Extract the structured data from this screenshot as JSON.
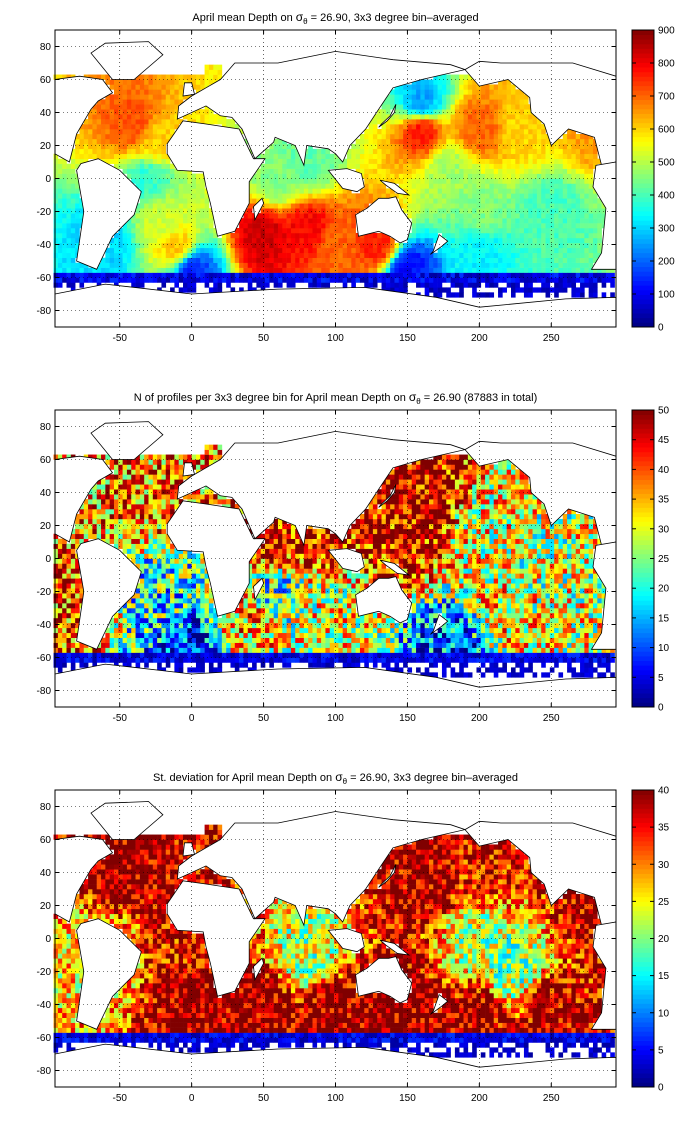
{
  "chart_data": [
    {
      "type": "heatmap",
      "title_parts": [
        "April mean Depth on ",
        "σ",
        "θ",
        " = 26.90, 3x3 degree bin–averaged"
      ],
      "xlabel": "",
      "ylabel": "",
      "xlim": [
        -95,
        295
      ],
      "ylim": [
        -90,
        90
      ],
      "xticks": [
        -50,
        0,
        50,
        100,
        150,
        200,
        250
      ],
      "yticks": [
        -80,
        -60,
        -40,
        -20,
        0,
        20,
        40,
        60,
        80
      ],
      "grid": true,
      "colorbar": {
        "min": 0,
        "max": 900,
        "ticks": [
          0,
          100,
          200,
          300,
          400,
          500,
          600,
          700,
          800,
          900
        ],
        "colormap": "jet"
      },
      "features": [
        {
          "lon": -40,
          "lat": 32,
          "value": 720
        },
        {
          "lon": -25,
          "lat": 22,
          "value": 600
        },
        {
          "lon": -30,
          "lat": 0,
          "value": 380
        },
        {
          "lon": -20,
          "lat": -25,
          "value": 520
        },
        {
          "lon": -10,
          "lat": -42,
          "value": 620
        },
        {
          "lon": -60,
          "lat": -40,
          "value": 300
        },
        {
          "lon": 50,
          "lat": -35,
          "value": 830
        },
        {
          "lon": 80,
          "lat": -30,
          "value": 790
        },
        {
          "lon": 100,
          "lat": -42,
          "value": 700
        },
        {
          "lon": 130,
          "lat": -40,
          "value": 760
        },
        {
          "lon": 60,
          "lat": 0,
          "value": 450
        },
        {
          "lon": 80,
          "lat": 10,
          "value": 420
        },
        {
          "lon": 160,
          "lat": 30,
          "value": 780
        },
        {
          "lon": 200,
          "lat": 30,
          "value": 700
        },
        {
          "lon": 230,
          "lat": 30,
          "value": 600
        },
        {
          "lon": 180,
          "lat": 5,
          "value": 480
        },
        {
          "lon": 200,
          "lat": -20,
          "value": 450
        },
        {
          "lon": 250,
          "lat": -20,
          "value": 400
        },
        {
          "lon": 200,
          "lat": -45,
          "value": 330
        },
        {
          "lon": 160,
          "lat": 45,
          "value": 250
        },
        {
          "lon": 0,
          "lat": -55,
          "value": 150
        },
        {
          "lon": 150,
          "lat": -55,
          "value": 120
        },
        {
          "lon": 280,
          "lat": 30,
          "value": 650
        }
      ]
    },
    {
      "type": "heatmap",
      "title_parts": [
        "N of profiles per 3x3 degree bin for April mean Depth on ",
        "σ",
        "θ",
        " = 26.90 (87883 in total)"
      ],
      "xlabel": "",
      "ylabel": "",
      "xlim": [
        -95,
        295
      ],
      "ylim": [
        -90,
        90
      ],
      "xticks": [
        -50,
        0,
        50,
        100,
        150,
        200,
        250
      ],
      "yticks": [
        -80,
        -60,
        -40,
        -20,
        0,
        20,
        40,
        60,
        80
      ],
      "grid": true,
      "colorbar": {
        "min": 0,
        "max": 50,
        "ticks": [
          0,
          5,
          10,
          15,
          20,
          25,
          30,
          35,
          40,
          45,
          50
        ],
        "colormap": "jet"
      },
      "features": [
        {
          "lon": 145,
          "lat": 40,
          "value": 50
        },
        {
          "lon": 165,
          "lat": 35,
          "value": 48
        },
        {
          "lon": 145,
          "lat": 20,
          "value": 45
        },
        {
          "lon": 60,
          "lat": 12,
          "value": 46
        },
        {
          "lon": 85,
          "lat": 15,
          "value": 44
        },
        {
          "lon": -30,
          "lat": 35,
          "value": 38
        },
        {
          "lon": -85,
          "lat": -30,
          "value": 40
        },
        {
          "lon": 200,
          "lat": 20,
          "value": 30
        },
        {
          "lon": 240,
          "lat": 0,
          "value": 28
        },
        {
          "lon": 220,
          "lat": -30,
          "value": 32
        },
        {
          "lon": 40,
          "lat": -40,
          "value": 35
        },
        {
          "lon": 100,
          "lat": -35,
          "value": 30
        },
        {
          "lon": -20,
          "lat": -20,
          "value": 20
        },
        {
          "lon": 60,
          "lat": -20,
          "value": 22
        },
        {
          "lon": 0,
          "lat": -55,
          "value": 8
        },
        {
          "lon": 180,
          "lat": -55,
          "value": 10
        }
      ]
    },
    {
      "type": "heatmap",
      "title_parts": [
        "St. deviation for April mean Depth on ",
        "σ",
        "θ",
        " = 26.90, 3x3 degree bin–averaged"
      ],
      "xlabel": "",
      "ylabel": "",
      "xlim": [
        -95,
        295
      ],
      "ylim": [
        -90,
        90
      ],
      "xticks": [
        -50,
        0,
        50,
        100,
        150,
        200,
        250
      ],
      "yticks": [
        -80,
        -60,
        -40,
        -20,
        0,
        20,
        40,
        60,
        80
      ],
      "grid": true,
      "colorbar": {
        "min": 0,
        "max": 40,
        "ticks": [
          0,
          5,
          10,
          15,
          20,
          25,
          30,
          35,
          40
        ],
        "colormap": "jet"
      },
      "features": [
        {
          "lon": -40,
          "lat": 40,
          "value": 40
        },
        {
          "lon": -20,
          "lat": 35,
          "value": 38
        },
        {
          "lon": 160,
          "lat": 35,
          "value": 39
        },
        {
          "lon": 200,
          "lat": 40,
          "value": 36
        },
        {
          "lon": 0,
          "lat": -40,
          "value": 40
        },
        {
          "lon": 50,
          "lat": -42,
          "value": 40
        },
        {
          "lon": 100,
          "lat": -45,
          "value": 40
        },
        {
          "lon": 150,
          "lat": -45,
          "value": 40
        },
        {
          "lon": 200,
          "lat": -45,
          "value": 39
        },
        {
          "lon": 250,
          "lat": -45,
          "value": 38
        },
        {
          "lon": -10,
          "lat": -5,
          "value": 36
        },
        {
          "lon": 200,
          "lat": 0,
          "value": 22
        },
        {
          "lon": 220,
          "lat": -20,
          "value": 20
        },
        {
          "lon": -60,
          "lat": -10,
          "value": 25
        },
        {
          "lon": 80,
          "lat": -10,
          "value": 22
        },
        {
          "lon": 280,
          "lat": 30,
          "value": 38
        }
      ]
    }
  ]
}
